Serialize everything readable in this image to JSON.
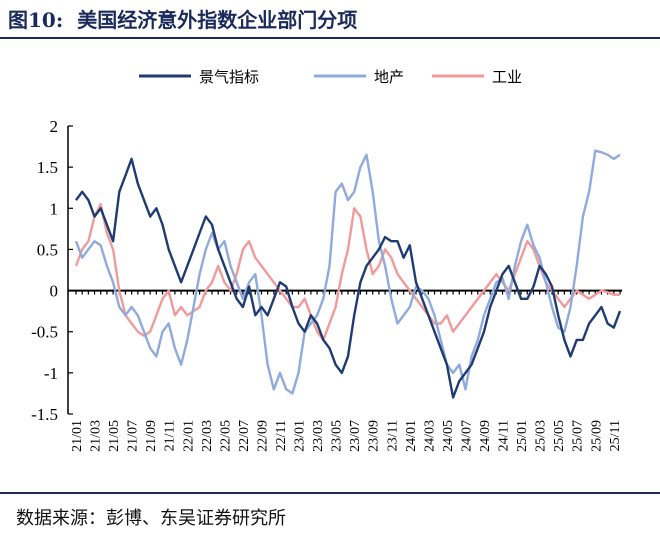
{
  "header": {
    "figure_no": "图10:",
    "title": "美国经济意外指数企业部门分项"
  },
  "footer": {
    "source": "数据来源：彭博、东吴证券研究所"
  },
  "chart_data": {
    "type": "line",
    "ylim": [
      -1.5,
      2
    ],
    "yticks": [
      "2",
      "1.5",
      "1",
      "0.5",
      "0",
      "-0.5",
      "-1",
      "-1.5"
    ],
    "xticks": [
      "21/01",
      "21/03",
      "21/05",
      "21/07",
      "21/09",
      "21/11",
      "22/01",
      "22/03",
      "22/05",
      "22/07",
      "22/09",
      "22/11",
      "23/01",
      "23/03",
      "23/05",
      "23/07",
      "23/09",
      "23/11",
      "24/01",
      "24/03",
      "24/05",
      "24/07",
      "24/09",
      "24/11",
      "25/01",
      "25/03",
      "25/05",
      "25/07",
      "25/09",
      "25/11"
    ],
    "legend_position": "top",
    "series": [
      {
        "name": "景气指标",
        "color": "#1f3b73",
        "points": [
          [
            0,
            1.1
          ],
          [
            0.5,
            1.2
          ],
          [
            1,
            1.1
          ],
          [
            1.5,
            0.9
          ],
          [
            2,
            1.0
          ],
          [
            2.5,
            0.8
          ],
          [
            3,
            0.6
          ],
          [
            3.5,
            1.2
          ],
          [
            4,
            1.4
          ],
          [
            4.5,
            1.6
          ],
          [
            5,
            1.3
          ],
          [
            5.5,
            1.1
          ],
          [
            6,
            0.9
          ],
          [
            6.5,
            1.0
          ],
          [
            7,
            0.8
          ],
          [
            7.5,
            0.5
          ],
          [
            8,
            0.3
          ],
          [
            8.5,
            0.1
          ],
          [
            9,
            0.3
          ],
          [
            9.5,
            0.5
          ],
          [
            10,
            0.7
          ],
          [
            10.5,
            0.9
          ],
          [
            11,
            0.8
          ],
          [
            11.5,
            0.5
          ],
          [
            12,
            0.3
          ],
          [
            12.5,
            0.1
          ],
          [
            13,
            -0.1
          ],
          [
            13.5,
            -0.2
          ],
          [
            14,
            0.05
          ],
          [
            14.5,
            -0.3
          ],
          [
            15,
            -0.2
          ],
          [
            15.5,
            -0.3
          ],
          [
            16,
            -0.1
          ],
          [
            16.5,
            0.1
          ],
          [
            17,
            0.05
          ],
          [
            17.5,
            -0.2
          ],
          [
            18,
            -0.4
          ],
          [
            18.5,
            -0.5
          ],
          [
            19,
            -0.3
          ],
          [
            19.5,
            -0.4
          ],
          [
            20,
            -0.6
          ],
          [
            20.5,
            -0.7
          ],
          [
            21,
            -0.9
          ],
          [
            21.5,
            -1.0
          ],
          [
            22,
            -0.8
          ],
          [
            22.5,
            -0.3
          ],
          [
            23,
            0.1
          ],
          [
            23.5,
            0.3
          ],
          [
            24,
            0.4
          ],
          [
            24.5,
            0.5
          ],
          [
            25,
            0.65
          ],
          [
            25.5,
            0.6
          ],
          [
            26,
            0.6
          ],
          [
            26.5,
            0.4
          ],
          [
            27,
            0.55
          ],
          [
            27.5,
            0.1
          ],
          [
            28,
            -0.1
          ],
          [
            28.5,
            -0.3
          ],
          [
            29,
            -0.5
          ],
          [
            29.5,
            -0.7
          ],
          [
            30,
            -0.9
          ],
          [
            30.5,
            -1.3
          ],
          [
            31,
            -1.1
          ],
          [
            31.5,
            -1.0
          ],
          [
            32,
            -0.9
          ],
          [
            32.5,
            -0.7
          ],
          [
            33,
            -0.5
          ],
          [
            33.5,
            -0.2
          ],
          [
            34,
            0.0
          ],
          [
            34.5,
            0.2
          ],
          [
            35,
            0.3
          ],
          [
            35.5,
            0.1
          ],
          [
            36,
            -0.1
          ],
          [
            36.5,
            -0.1
          ],
          [
            37,
            0.05
          ],
          [
            37.5,
            0.3
          ],
          [
            38,
            0.2
          ],
          [
            38.5,
            0.05
          ],
          [
            39,
            -0.3
          ],
          [
            39.5,
            -0.6
          ],
          [
            40,
            -0.8
          ],
          [
            40.5,
            -0.6
          ],
          [
            41,
            -0.6
          ],
          [
            41.5,
            -0.4
          ],
          [
            42,
            -0.3
          ],
          [
            42.5,
            -0.2
          ],
          [
            43,
            -0.4
          ],
          [
            43.5,
            -0.45
          ],
          [
            44,
            -0.25
          ]
        ]
      },
      {
        "name": "地产",
        "color": "#8faadc",
        "points": [
          [
            0,
            0.6
          ],
          [
            0.5,
            0.4
          ],
          [
            1,
            0.5
          ],
          [
            1.5,
            0.6
          ],
          [
            2,
            0.55
          ],
          [
            2.5,
            0.3
          ],
          [
            3,
            0.1
          ],
          [
            3.5,
            -0.2
          ],
          [
            4,
            -0.3
          ],
          [
            4.5,
            -0.2
          ],
          [
            5,
            -0.3
          ],
          [
            5.5,
            -0.5
          ],
          [
            6,
            -0.7
          ],
          [
            6.5,
            -0.8
          ],
          [
            7,
            -0.5
          ],
          [
            7.5,
            -0.4
          ],
          [
            8,
            -0.7
          ],
          [
            8.5,
            -0.9
          ],
          [
            9,
            -0.6
          ],
          [
            9.5,
            -0.2
          ],
          [
            10,
            0.2
          ],
          [
            10.5,
            0.5
          ],
          [
            11,
            0.7
          ],
          [
            11.5,
            0.5
          ],
          [
            12,
            0.6
          ],
          [
            12.5,
            0.3
          ],
          [
            13,
            0.1
          ],
          [
            13.5,
            -0.1
          ],
          [
            14,
            0.1
          ],
          [
            14.5,
            0.2
          ],
          [
            15,
            -0.3
          ],
          [
            15.5,
            -0.9
          ],
          [
            16,
            -1.2
          ],
          [
            16.5,
            -1.0
          ],
          [
            17,
            -1.2
          ],
          [
            17.5,
            -1.25
          ],
          [
            18,
            -1.0
          ],
          [
            18.5,
            -0.5
          ],
          [
            19,
            -0.4
          ],
          [
            19.5,
            -0.3
          ],
          [
            20,
            -0.1
          ],
          [
            20.5,
            0.3
          ],
          [
            21,
            1.2
          ],
          [
            21.5,
            1.3
          ],
          [
            22,
            1.1
          ],
          [
            22.5,
            1.2
          ],
          [
            23,
            1.5
          ],
          [
            23.5,
            1.65
          ],
          [
            24,
            1.2
          ],
          [
            24.5,
            0.6
          ],
          [
            25,
            0.3
          ],
          [
            25.5,
            -0.1
          ],
          [
            26,
            -0.4
          ],
          [
            26.5,
            -0.3
          ],
          [
            27,
            -0.2
          ],
          [
            27.5,
            0.05
          ],
          [
            28,
            0.0
          ],
          [
            28.5,
            -0.1
          ],
          [
            29,
            -0.3
          ],
          [
            29.5,
            -0.6
          ],
          [
            30,
            -0.9
          ],
          [
            30.5,
            -1.0
          ],
          [
            31,
            -0.9
          ],
          [
            31.5,
            -1.2
          ],
          [
            32,
            -0.8
          ],
          [
            32.5,
            -0.6
          ],
          [
            33,
            -0.3
          ],
          [
            33.5,
            -0.1
          ],
          [
            34,
            0.1
          ],
          [
            34.5,
            0.15
          ],
          [
            35,
            -0.1
          ],
          [
            35.5,
            0.3
          ],
          [
            36,
            0.6
          ],
          [
            36.5,
            0.8
          ],
          [
            37,
            0.55
          ],
          [
            37.5,
            0.4
          ],
          [
            38,
            0.1
          ],
          [
            38.5,
            -0.2
          ],
          [
            39,
            -0.45
          ],
          [
            39.5,
            -0.5
          ],
          [
            40,
            -0.2
          ],
          [
            40.5,
            0.3
          ],
          [
            41,
            0.9
          ],
          [
            41.5,
            1.2
          ],
          [
            42,
            1.7
          ],
          [
            42.5,
            1.68
          ],
          [
            43,
            1.65
          ],
          [
            43.5,
            1.6
          ],
          [
            44,
            1.65
          ]
        ]
      },
      {
        "name": "工业",
        "color": "#f29a9a",
        "points": [
          [
            0,
            0.3
          ],
          [
            0.5,
            0.5
          ],
          [
            1,
            0.6
          ],
          [
            1.5,
            0.9
          ],
          [
            2,
            1.05
          ],
          [
            2.5,
            0.7
          ],
          [
            3,
            0.5
          ],
          [
            3.5,
            0.0
          ],
          [
            4,
            -0.3
          ],
          [
            4.5,
            -0.4
          ],
          [
            5,
            -0.5
          ],
          [
            5.5,
            -0.55
          ],
          [
            6,
            -0.5
          ],
          [
            6.5,
            -0.3
          ],
          [
            7,
            -0.1
          ],
          [
            7.5,
            0.0
          ],
          [
            8,
            -0.3
          ],
          [
            8.5,
            -0.2
          ],
          [
            9,
            -0.3
          ],
          [
            9.5,
            -0.25
          ],
          [
            10,
            -0.2
          ],
          [
            10.5,
            0.0
          ],
          [
            11,
            0.1
          ],
          [
            11.5,
            0.3
          ],
          [
            12,
            0.1
          ],
          [
            12.5,
            0.0
          ],
          [
            13,
            0.2
          ],
          [
            13.5,
            0.5
          ],
          [
            14,
            0.6
          ],
          [
            14.5,
            0.4
          ],
          [
            15,
            0.3
          ],
          [
            15.5,
            0.2
          ],
          [
            16,
            0.1
          ],
          [
            16.5,
            0.0
          ],
          [
            17,
            -0.1
          ],
          [
            17.5,
            -0.2
          ],
          [
            18,
            -0.2
          ],
          [
            18.5,
            -0.1
          ],
          [
            19,
            -0.3
          ],
          [
            19.5,
            -0.5
          ],
          [
            20,
            -0.6
          ],
          [
            20.5,
            -0.4
          ],
          [
            21,
            -0.2
          ],
          [
            21.5,
            0.2
          ],
          [
            22,
            0.5
          ],
          [
            22.5,
            1.0
          ],
          [
            23,
            0.9
          ],
          [
            23.5,
            0.5
          ],
          [
            24,
            0.2
          ],
          [
            24.5,
            0.3
          ],
          [
            25,
            0.5
          ],
          [
            25.5,
            0.4
          ],
          [
            26,
            0.2
          ],
          [
            26.5,
            0.1
          ],
          [
            27,
            0.0
          ],
          [
            27.5,
            -0.1
          ],
          [
            28,
            -0.2
          ],
          [
            28.5,
            -0.3
          ],
          [
            29,
            -0.4
          ],
          [
            29.5,
            -0.4
          ],
          [
            30,
            -0.3
          ],
          [
            30.5,
            -0.5
          ],
          [
            31,
            -0.4
          ],
          [
            31.5,
            -0.3
          ],
          [
            32,
            -0.2
          ],
          [
            32.5,
            -0.1
          ],
          [
            33,
            0.0
          ],
          [
            33.5,
            0.1
          ],
          [
            34,
            0.2
          ],
          [
            34.5,
            0.1
          ],
          [
            35,
            0.0
          ],
          [
            35.5,
            0.2
          ],
          [
            36,
            0.4
          ],
          [
            36.5,
            0.6
          ],
          [
            37,
            0.5
          ],
          [
            37.5,
            0.3
          ],
          [
            38,
            0.1
          ],
          [
            38.5,
            0.0
          ],
          [
            39,
            -0.1
          ],
          [
            39.5,
            -0.2
          ],
          [
            40,
            -0.1
          ],
          [
            40.5,
            0.0
          ],
          [
            41,
            -0.05
          ],
          [
            41.5,
            -0.1
          ],
          [
            42,
            -0.05
          ],
          [
            42.5,
            0.0
          ],
          [
            43,
            -0.02
          ],
          [
            43.5,
            -0.05
          ],
          [
            44,
            -0.05
          ]
        ]
      }
    ]
  }
}
